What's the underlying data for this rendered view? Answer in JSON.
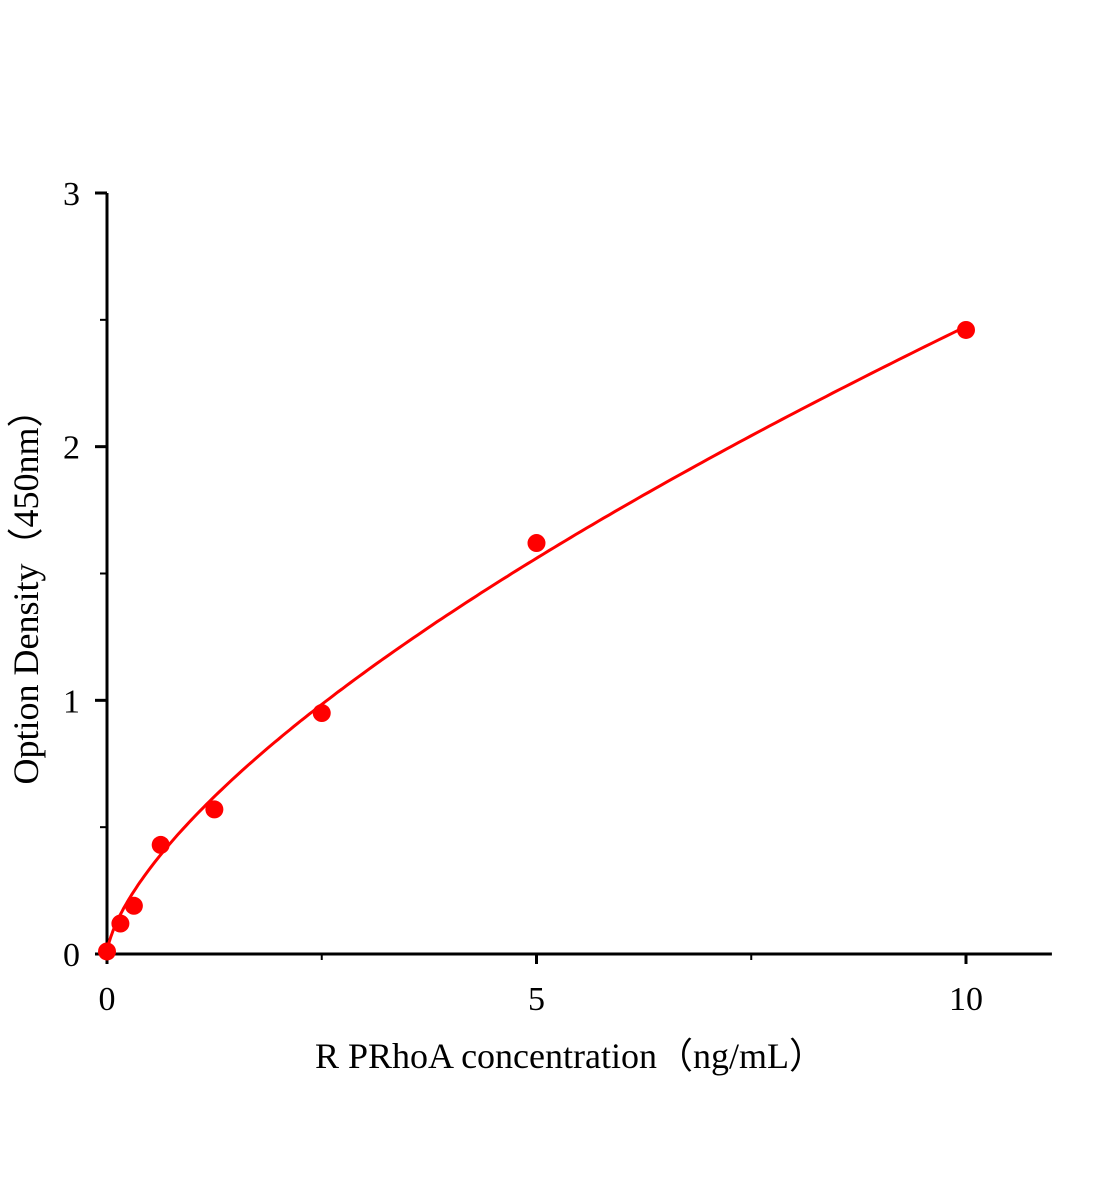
{
  "chart_data": {
    "type": "scatter",
    "title": "",
    "xlabel": "R PRhoA  concentration（ng/mL）",
    "ylabel": "Option Density（450nm）",
    "xlim": [
      0,
      11
    ],
    "ylim": [
      0,
      3
    ],
    "x_ticks": [
      0,
      5,
      10
    ],
    "x_tick_labels": [
      "0",
      "5",
      "10"
    ],
    "x_minor_ticks": [
      2.5,
      7.5
    ],
    "y_ticks": [
      0,
      1,
      2,
      3
    ],
    "y_tick_labels": [
      "0",
      "1",
      "2",
      "3"
    ],
    "y_minor_ticks": [
      0.5,
      1.5,
      2.5
    ],
    "grid": false,
    "legend": "none",
    "series": [
      {
        "x": [
          0,
          0.156,
          0.313,
          0.625,
          1.25,
          2.5,
          5,
          10
        ],
        "y": [
          0.01,
          0.12,
          0.19,
          0.43,
          0.57,
          0.95,
          1.62,
          2.46
        ],
        "color": "#ff0000",
        "marker": "circle",
        "fit_curve": true
      }
    ]
  }
}
